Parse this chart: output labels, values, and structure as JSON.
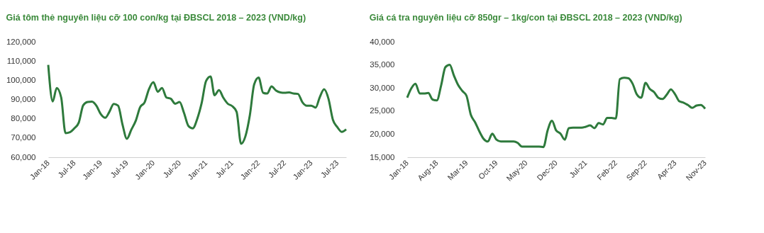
{
  "chart_data": [
    {
      "type": "line",
      "title": "Giá tôm thẻ nguyên liệu cỡ 100 con/kg tại ĐBSCL 2018 – 2023 (VND/kg)",
      "x": [
        "2018-01",
        "2018-02",
        "2018-03",
        "2018-04",
        "2018-05",
        "2018-06",
        "2018-07",
        "2018-08",
        "2018-09",
        "2018-10",
        "2018-11",
        "2018-12",
        "2019-01",
        "2019-02",
        "2019-03",
        "2019-04",
        "2019-05",
        "2019-06",
        "2019-07",
        "2019-08",
        "2019-09",
        "2019-10",
        "2019-11",
        "2019-12",
        "2020-01",
        "2020-02",
        "2020-03",
        "2020-04",
        "2020-05",
        "2020-06",
        "2020-07",
        "2020-08",
        "2020-09",
        "2020-10",
        "2020-11",
        "2020-12",
        "2021-01",
        "2021-02",
        "2021-03",
        "2021-04",
        "2021-05",
        "2021-06",
        "2021-07",
        "2021-08",
        "2021-09",
        "2021-10",
        "2021-11",
        "2021-12",
        "2022-01",
        "2022-02",
        "2022-03",
        "2022-04",
        "2022-05",
        "2022-06",
        "2022-07",
        "2022-08",
        "2022-09",
        "2022-10",
        "2022-11",
        "2022-12",
        "2023-01",
        "2023-02",
        "2023-03",
        "2023-04",
        "2023-05",
        "2023-06",
        "2023-07",
        "2023-08",
        "2023-09"
      ],
      "series": [
        {
          "color": "#2e7a3c",
          "values": [
            108000,
            89000,
            96000,
            91000,
            72500,
            73000,
            75000,
            78000,
            87000,
            88700,
            88900,
            86800,
            82400,
            80500,
            83500,
            87700,
            86800,
            76900,
            69600,
            74300,
            79000,
            86000,
            88500,
            95300,
            99000,
            94000,
            96000,
            91000,
            90400,
            87800,
            88700,
            83000,
            76200,
            75000,
            80000,
            88000,
            99600,
            102000,
            92200,
            94900,
            90900,
            87800,
            86600,
            83600,
            67000,
            70800,
            81800,
            97800,
            101400,
            93500,
            93100,
            96800,
            94700,
            93700,
            93500,
            93700,
            93100,
            92900,
            88600,
            86800,
            86800,
            85800,
            91100,
            95300,
            90400,
            79400,
            75700,
            73200,
            74500
          ]
        }
      ],
      "xlim": [
        "2018-01",
        "2023-09"
      ],
      "xticks": [
        {
          "value": "2018-01",
          "label": "Jan-18"
        },
        {
          "value": "2018-07",
          "label": "Jul-18"
        },
        {
          "value": "2019-01",
          "label": "Jan-19"
        },
        {
          "value": "2019-07",
          "label": "Jul-19"
        },
        {
          "value": "2020-01",
          "label": "Jan-20"
        },
        {
          "value": "2020-07",
          "label": "Jul-20"
        },
        {
          "value": "2021-01",
          "label": "Jan-21"
        },
        {
          "value": "2021-07",
          "label": "Jul-21"
        },
        {
          "value": "2022-01",
          "label": "Jan-22"
        },
        {
          "value": "2022-07",
          "label": "Jul-22"
        },
        {
          "value": "2023-01",
          "label": "Jan-23"
        },
        {
          "value": "2023-07",
          "label": "Jul-23"
        }
      ],
      "ylim": [
        60000,
        120000
      ],
      "yticks": [
        {
          "value": 60000,
          "label": "60,000"
        },
        {
          "value": 70000,
          "label": "70,000"
        },
        {
          "value": 80000,
          "label": "80,000"
        },
        {
          "value": 90000,
          "label": "90,000"
        },
        {
          "value": 100000,
          "label": "100,000"
        },
        {
          "value": 110000,
          "label": "110,000"
        },
        {
          "value": 120000,
          "label": "120,000"
        }
      ],
      "grid": false,
      "marker": "none",
      "line_style": "solid"
    },
    {
      "type": "line",
      "title": "Giá cá tra nguyên liệu cỡ 850gr – 1kg/con tại ĐBSCL 2018 – 2023 (VND/kg)",
      "x": [
        "2018-01",
        "2018-02",
        "2018-03",
        "2018-04",
        "2018-05",
        "2018-06",
        "2018-07",
        "2018-08",
        "2018-09",
        "2018-10",
        "2018-11",
        "2018-12",
        "2019-01",
        "2019-02",
        "2019-03",
        "2019-04",
        "2019-05",
        "2019-06",
        "2019-07",
        "2019-08",
        "2019-09",
        "2019-10",
        "2019-11",
        "2019-12",
        "2020-01",
        "2020-02",
        "2020-03",
        "2020-04",
        "2020-05",
        "2020-06",
        "2020-07",
        "2020-08",
        "2020-09",
        "2020-10",
        "2020-11",
        "2020-12",
        "2021-01",
        "2021-02",
        "2021-03",
        "2021-04",
        "2021-05",
        "2021-06",
        "2021-07",
        "2021-08",
        "2021-09",
        "2021-10",
        "2021-11",
        "2021-12",
        "2022-01",
        "2022-02",
        "2022-03",
        "2022-04",
        "2022-05",
        "2022-06",
        "2022-07",
        "2022-08",
        "2022-09",
        "2022-10",
        "2022-11",
        "2022-12",
        "2023-01",
        "2023-02",
        "2023-03",
        "2023-04",
        "2023-05",
        "2023-06",
        "2023-07",
        "2023-08",
        "2023-09",
        "2023-10",
        "2023-11"
      ],
      "series": [
        {
          "color": "#2e7a3c",
          "values": [
            27900,
            30000,
            30900,
            28800,
            28800,
            28900,
            27500,
            27300,
            30600,
            34500,
            35000,
            32700,
            30600,
            29300,
            28300,
            24200,
            22600,
            20600,
            19000,
            18400,
            20100,
            18800,
            18400,
            18400,
            18400,
            18400,
            18100,
            17300,
            17300,
            17300,
            17300,
            17300,
            17200,
            20800,
            22900,
            20800,
            20100,
            18800,
            21300,
            21400,
            21400,
            21400,
            21600,
            21900,
            21300,
            22400,
            22100,
            23500,
            23500,
            23400,
            31900,
            32200,
            32100,
            30900,
            28600,
            27900,
            31100,
            29800,
            29100,
            27900,
            27600,
            28600,
            29700,
            28600,
            27100,
            26800,
            26300,
            25700,
            26200,
            26300,
            25500
          ]
        }
      ],
      "xlim": [
        "2018-01",
        "2023-11"
      ],
      "xticks": [
        {
          "value": "2018-01",
          "label": "Jan-18"
        },
        {
          "value": "2018-08",
          "label": "Aug-18"
        },
        {
          "value": "2019-03",
          "label": "Mar-19"
        },
        {
          "value": "2019-10",
          "label": "Oct-19"
        },
        {
          "value": "2020-05",
          "label": "May-20"
        },
        {
          "value": "2020-12",
          "label": "Dec-20"
        },
        {
          "value": "2021-07",
          "label": "Jul-21"
        },
        {
          "value": "2022-02",
          "label": "Feb-22"
        },
        {
          "value": "2022-09",
          "label": "Sep-22"
        },
        {
          "value": "2023-04",
          "label": "Apr-23"
        },
        {
          "value": "2023-11",
          "label": "Nov-23"
        }
      ],
      "ylim": [
        15000,
        40000
      ],
      "yticks": [
        {
          "value": 15000,
          "label": "15,000"
        },
        {
          "value": 20000,
          "label": "20,000"
        },
        {
          "value": 25000,
          "label": "25,000"
        },
        {
          "value": 30000,
          "label": "30,000"
        },
        {
          "value": 35000,
          "label": "35,000"
        },
        {
          "value": 40000,
          "label": "40,000"
        }
      ],
      "grid": false,
      "marker": "none",
      "line_style": "solid"
    }
  ]
}
